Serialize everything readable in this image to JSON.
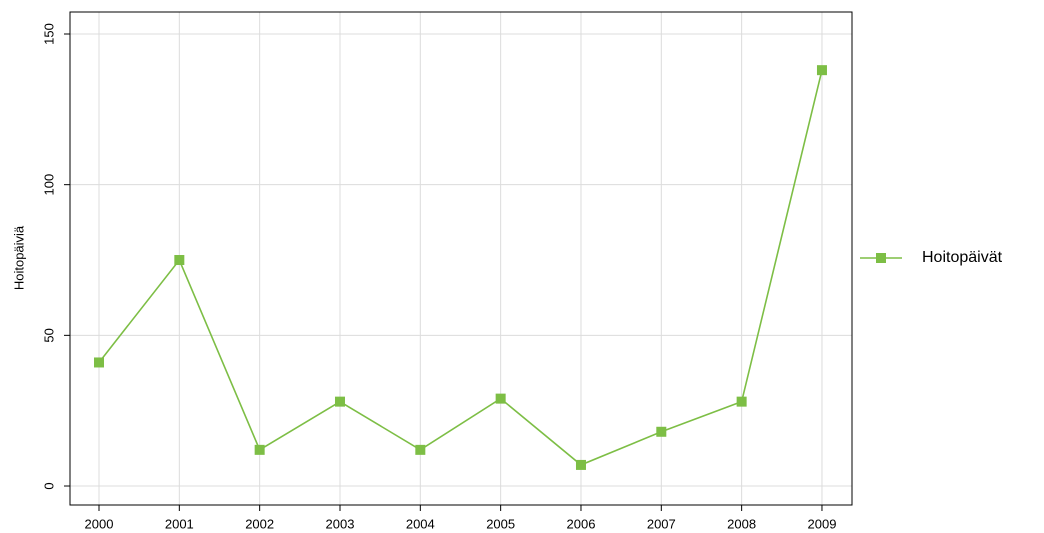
{
  "chart_data": {
    "type": "line",
    "y_label": "Hoitopäiviä",
    "categories": [
      "2000",
      "2001",
      "2002",
      "2003",
      "2004",
      "2005",
      "2006",
      "2007",
      "2008",
      "2009"
    ],
    "series": [
      {
        "name": "Hoitopäivät",
        "color": "#7dbe45",
        "values": [
          41,
          75,
          12,
          28,
          12,
          29,
          7,
          18,
          28,
          138
        ]
      }
    ],
    "ylim": [
      -6.3,
      157.3
    ],
    "yticks": [
      0,
      50,
      100,
      150
    ],
    "grid": true,
    "legend": "right"
  }
}
